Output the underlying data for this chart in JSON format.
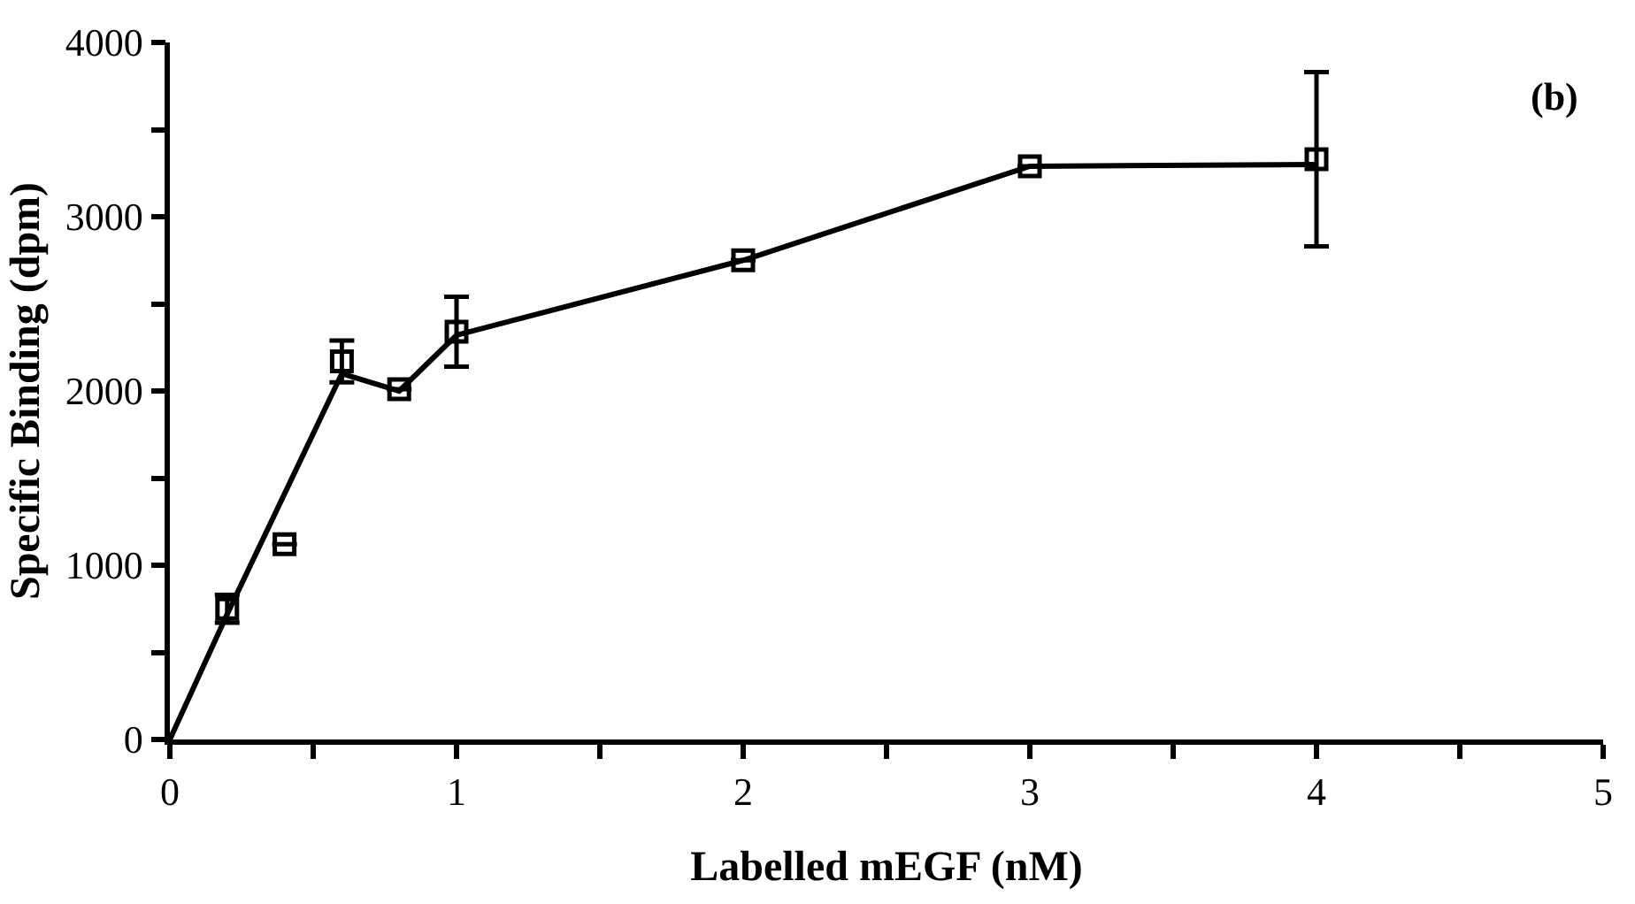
{
  "chart_data": {
    "type": "scatter",
    "xlabel": "Labelled mEGF (nM)",
    "ylabel": "Specific Binding (dpm)",
    "annotations": [
      "(b)"
    ],
    "series": [
      {
        "type": "line",
        "color": "#000000",
        "marker": "none",
        "line_style": "solid",
        "x": [
          0,
          0.2,
          0.6,
          0.8,
          1,
          2,
          3,
          4
        ],
        "values": [
          0,
          720,
          2100,
          2000,
          2320,
          2750,
          3290,
          3300
        ]
      },
      {
        "color": "#000000",
        "marker": "square",
        "x": [
          0.2,
          0.4,
          0.6,
          0.8,
          1,
          2,
          3,
          4
        ],
        "values": [
          750,
          1120,
          2170,
          2010,
          2340,
          2750,
          3290,
          3330
        ],
        "errors": [
          80,
          null,
          120,
          null,
          200,
          null,
          null,
          500
        ]
      }
    ],
    "xlim": [
      0,
      5
    ],
    "ylim": [
      0,
      4000
    ],
    "xticks": [
      0,
      {
        "value": 0.5,
        "label": null
      },
      1,
      {
        "value": 1.5,
        "label": null
      },
      2,
      {
        "value": 2.5,
        "label": null
      },
      3,
      {
        "value": 3.5,
        "label": null
      },
      4,
      {
        "value": 4.5,
        "label": null
      },
      5
    ],
    "yticks": [
      0,
      {
        "value": 500,
        "label": null
      },
      1000,
      {
        "value": 1500,
        "label": null
      },
      2000,
      {
        "value": 2500,
        "label": null
      },
      3000,
      {
        "value": 3500,
        "label": null
      },
      4000
    ]
  }
}
